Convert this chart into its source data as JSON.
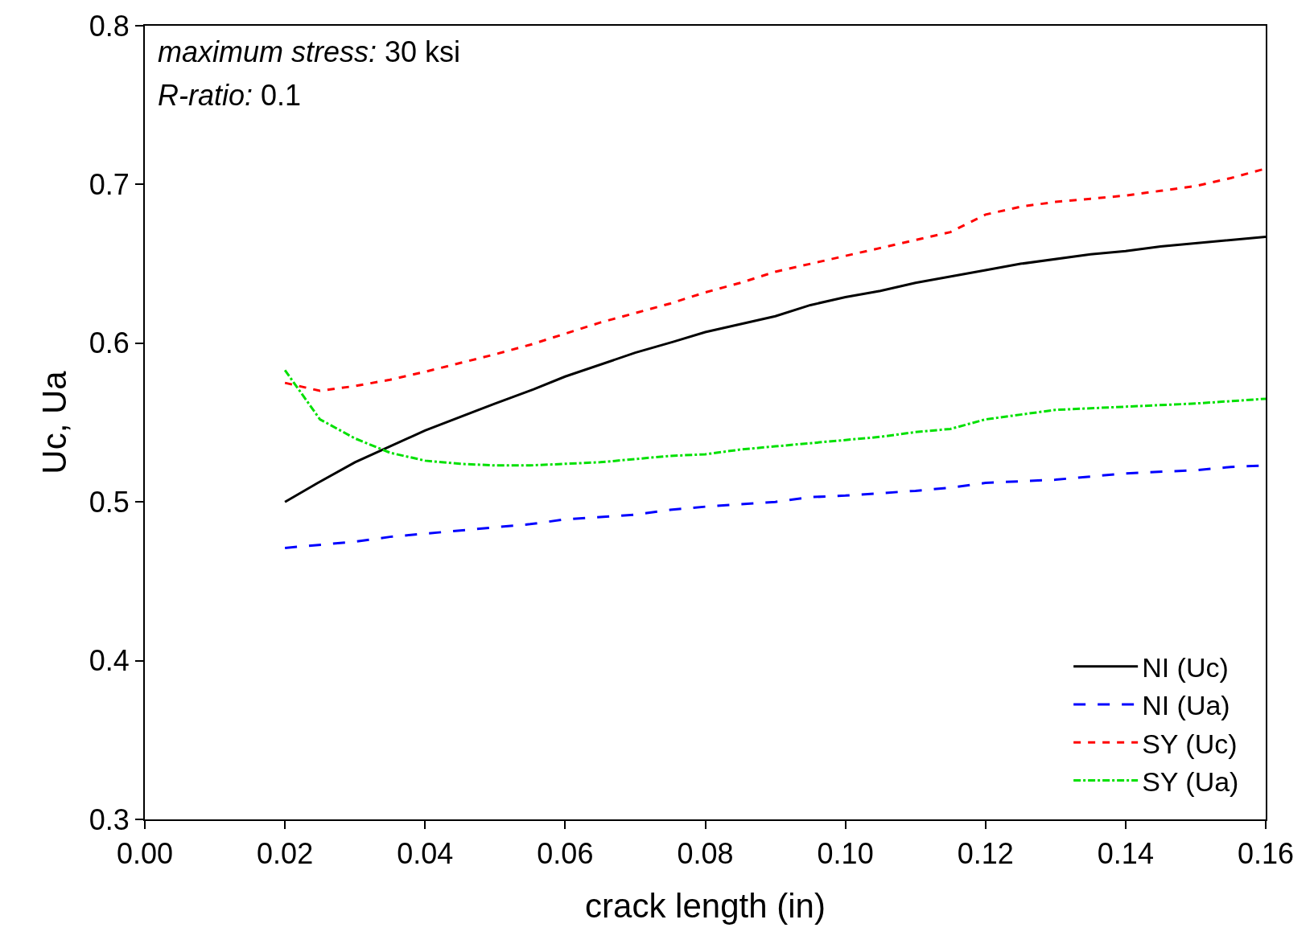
{
  "chart_data": {
    "type": "line",
    "xlabel": "crack length (in)",
    "ylabel": "Uc, Ua",
    "annotations": [
      "maximum stress: 30 ksi",
      "R-ratio: 0.1"
    ],
    "xlim": [
      0,
      0.16
    ],
    "xticks": [
      {
        "value": 0,
        "label": "0.00"
      },
      0.02,
      0.04,
      0.06,
      0.08,
      {
        "value": 0.1,
        "label": "0.10"
      },
      0.12,
      0.14,
      0.16
    ],
    "ylim": [
      0.3,
      0.8
    ],
    "yticks": [
      0.3,
      0.4,
      0.5,
      0.6,
      0.7,
      0.8
    ],
    "legend": "bottom right",
    "marker": "none",
    "series": [
      {
        "name": "NI (Uc)",
        "color": "#000000",
        "line_style": "solid",
        "x": [
          0.02,
          0.0247,
          0.03,
          0.04,
          0.05,
          0.0555,
          0.06,
          0.07,
          0.0755,
          0.08,
          0.09,
          0.095,
          0.1,
          0.105,
          0.11,
          0.12,
          0.125,
          0.135,
          0.14,
          0.145,
          0.16
        ],
        "values": [
          0.5,
          0.512,
          0.525,
          0.545,
          0.562,
          0.571,
          0.579,
          0.594,
          0.601,
          0.607,
          0.617,
          0.624,
          0.629,
          0.633,
          0.638,
          0.646,
          0.65,
          0.656,
          0.658,
          0.661,
          0.667
        ]
      },
      {
        "name": "NI (Ua)",
        "color": "#0000ff",
        "line_style": "longdash",
        "x": [
          0.02,
          0.03,
          0.035,
          0.04,
          0.05,
          0.055,
          0.06,
          0.07,
          0.075,
          0.08,
          0.09,
          0.095,
          0.1,
          0.11,
          0.115,
          0.12,
          0.13,
          0.135,
          0.14,
          0.15,
          0.155,
          0.16
        ],
        "values": [
          0.471,
          0.475,
          0.478,
          0.48,
          0.484,
          0.486,
          0.489,
          0.492,
          0.495,
          0.497,
          0.5,
          0.503,
          0.504,
          0.507,
          0.509,
          0.512,
          0.514,
          0.516,
          0.518,
          0.52,
          0.522,
          0.523
        ]
      },
      {
        "name": "SY (Uc)",
        "color": "#ff0000",
        "line_style": "dashed",
        "x": [
          0.02,
          0.025,
          0.03,
          0.035,
          0.04,
          0.05,
          0.055,
          0.06,
          0.065,
          0.07,
          0.075,
          0.08,
          0.085,
          0.09,
          0.095,
          0.1,
          0.105,
          0.11,
          0.115,
          0.12,
          0.125,
          0.13,
          0.135,
          0.14,
          0.145,
          0.15,
          0.155,
          0.16
        ],
        "values": [
          0.575,
          0.57,
          0.573,
          0.577,
          0.582,
          0.593,
          0.599,
          0.606,
          0.613,
          0.619,
          0.625,
          0.632,
          0.638,
          0.645,
          0.65,
          0.655,
          0.66,
          0.665,
          0.67,
          0.681,
          0.686,
          0.689,
          0.691,
          0.693,
          0.696,
          0.699,
          0.704,
          0.71
        ]
      },
      {
        "name": "SY (Ua)",
        "color": "#00e000",
        "line_style": "dashdot",
        "x": [
          0.02,
          0.025,
          0.03,
          0.035,
          0.04,
          0.045,
          0.05,
          0.055,
          0.06,
          0.065,
          0.07,
          0.075,
          0.08,
          0.085,
          0.09,
          0.095,
          0.1,
          0.105,
          0.11,
          0.115,
          0.12,
          0.125,
          0.13,
          0.135,
          0.14,
          0.15,
          0.16
        ],
        "values": [
          0.583,
          0.552,
          0.54,
          0.531,
          0.526,
          0.524,
          0.523,
          0.523,
          0.524,
          0.525,
          0.527,
          0.529,
          0.53,
          0.533,
          0.535,
          0.537,
          0.539,
          0.541,
          0.544,
          0.546,
          0.552,
          0.555,
          0.558,
          0.559,
          0.56,
          0.562,
          0.565
        ]
      }
    ]
  }
}
